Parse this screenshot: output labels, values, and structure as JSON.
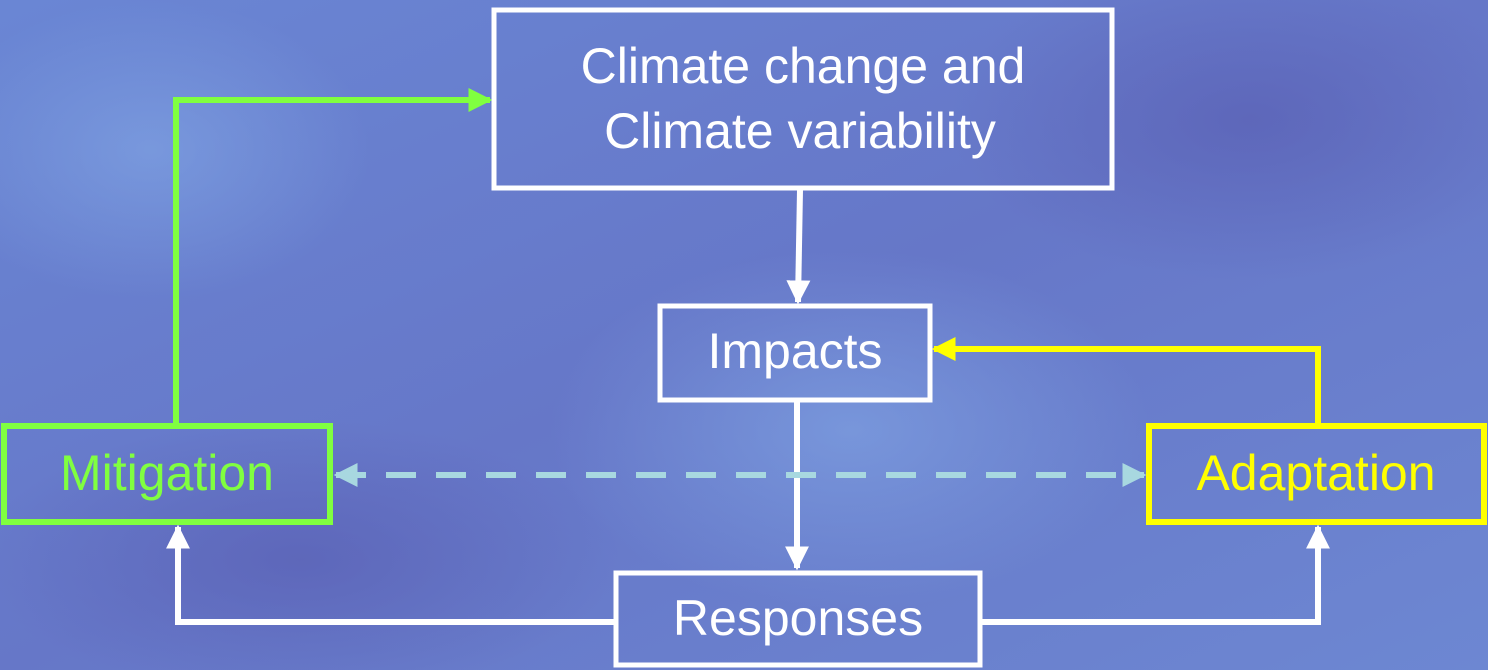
{
  "nodes": [
    {
      "label": [
        "Climate change and",
        "Climate variability"
      ]
    },
    {
      "label": [
        "Impacts"
      ]
    },
    {
      "label": [
        "Mitigation"
      ]
    },
    {
      "label": [
        "Adaptation"
      ]
    },
    {
      "label": [
        "Responses"
      ]
    }
  ]
}
